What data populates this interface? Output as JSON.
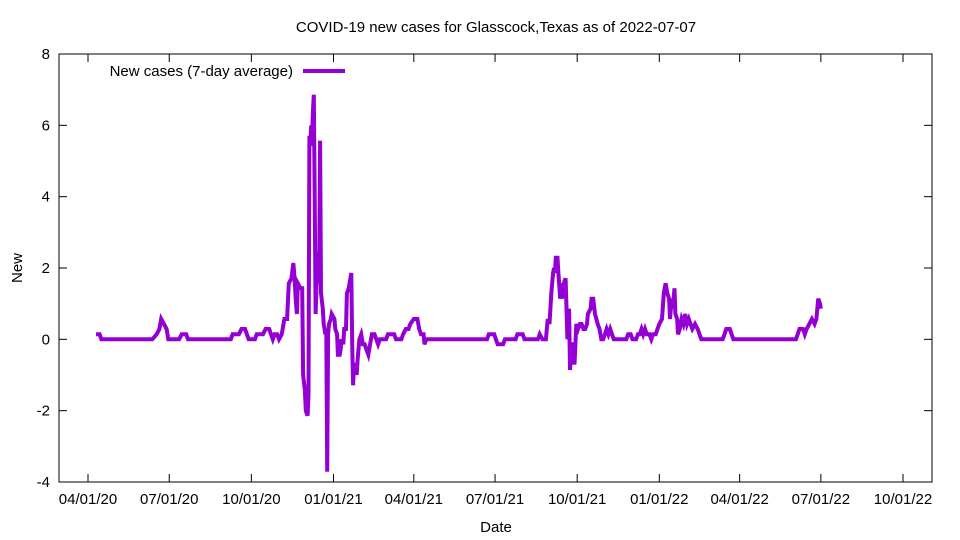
{
  "chart_data": {
    "type": "line",
    "title": "COVID-19 new cases for Glasscock,Texas as of 2022-07-07",
    "xlabel": "Date",
    "ylabel": "New",
    "x_ticks": [
      "04/01/20",
      "07/01/20",
      "10/01/20",
      "01/01/21",
      "04/01/21",
      "07/01/21",
      "10/01/21",
      "01/01/22",
      "04/01/22",
      "07/01/22",
      "10/01/22"
    ],
    "x_range": [
      "2020-04-01",
      "2022-10-01"
    ],
    "y_ticks": [
      -4,
      -2,
      0,
      2,
      4,
      6,
      8
    ],
    "ylim": [
      -4,
      8
    ],
    "grid": false,
    "legend_position": "top-left",
    "series": [
      {
        "name": "New cases (7-day average)",
        "color": "#9400d3",
        "points": [
          [
            "2020-04-10",
            0.14
          ],
          [
            "2020-04-14",
            0.14
          ],
          [
            "2020-04-16",
            0.0
          ],
          [
            "2020-06-12",
            0.0
          ],
          [
            "2020-06-17",
            0.14
          ],
          [
            "2020-06-20",
            0.29
          ],
          [
            "2020-06-22",
            0.57
          ],
          [
            "2020-06-25",
            0.43
          ],
          [
            "2020-06-28",
            0.29
          ],
          [
            "2020-06-30",
            0.0
          ],
          [
            "2020-07-12",
            0.0
          ],
          [
            "2020-07-15",
            0.14
          ],
          [
            "2020-07-20",
            0.14
          ],
          [
            "2020-07-22",
            0.0
          ],
          [
            "2020-09-08",
            0.0
          ],
          [
            "2020-09-10",
            0.14
          ],
          [
            "2020-09-17",
            0.14
          ],
          [
            "2020-09-20",
            0.29
          ],
          [
            "2020-09-24",
            0.29
          ],
          [
            "2020-09-26",
            0.14
          ],
          [
            "2020-09-28",
            0.0
          ],
          [
            "2020-10-05",
            0.0
          ],
          [
            "2020-10-07",
            0.14
          ],
          [
            "2020-10-14",
            0.14
          ],
          [
            "2020-10-17",
            0.29
          ],
          [
            "2020-10-21",
            0.29
          ],
          [
            "2020-10-23",
            0.14
          ],
          [
            "2020-10-25",
            0.0
          ],
          [
            "2020-10-27",
            0.14
          ],
          [
            "2020-10-30",
            0.14
          ],
          [
            "2020-11-01",
            0.0
          ],
          [
            "2020-11-04",
            0.14
          ],
          [
            "2020-11-07",
            0.57
          ],
          [
            "2020-11-10",
            0.57
          ],
          [
            "2020-11-12",
            1.57
          ],
          [
            "2020-11-15",
            1.71
          ],
          [
            "2020-11-17",
            2.14
          ],
          [
            "2020-11-18",
            1.86
          ],
          [
            "2020-11-20",
            1.0
          ],
          [
            "2020-11-21",
            0.71
          ],
          [
            "2020-11-22",
            1.57
          ],
          [
            "2020-11-25",
            1.43
          ],
          [
            "2020-11-27",
            1.43
          ],
          [
            "2020-11-28",
            -1.0
          ],
          [
            "2020-11-30",
            -1.43
          ],
          [
            "2020-12-01",
            -2.0
          ],
          [
            "2020-12-03",
            -2.14
          ],
          [
            "2020-12-04",
            -1.57
          ],
          [
            "2020-12-05",
            5.71
          ],
          [
            "2020-12-06",
            5.43
          ],
          [
            "2020-12-07",
            6.0
          ],
          [
            "2020-12-08",
            5.71
          ],
          [
            "2020-12-09",
            6.43
          ],
          [
            "2020-12-10",
            6.86
          ],
          [
            "2020-12-11",
            4.0
          ],
          [
            "2020-12-12",
            0.71
          ],
          [
            "2020-12-13",
            1.43
          ],
          [
            "2020-12-14",
            2.43
          ],
          [
            "2020-12-15",
            1.57
          ],
          [
            "2020-12-16",
            2.0
          ],
          [
            "2020-12-17",
            5.57
          ],
          [
            "2020-12-18",
            1.29
          ],
          [
            "2020-12-20",
            0.86
          ],
          [
            "2020-12-21",
            0.43
          ],
          [
            "2020-12-23",
            0.14
          ],
          [
            "2020-12-24",
            0.29
          ],
          [
            "2020-12-25",
            -3.71
          ],
          [
            "2020-12-26",
            0.14
          ],
          [
            "2020-12-27",
            0.43
          ],
          [
            "2020-12-29",
            0.57
          ],
          [
            "2020-12-30",
            0.71
          ],
          [
            "2021-01-02",
            0.57
          ],
          [
            "2021-01-03",
            0.29
          ],
          [
            "2021-01-05",
            0.14
          ],
          [
            "2021-01-06",
            -0.43
          ],
          [
            "2021-01-08",
            -0.43
          ],
          [
            "2021-01-09",
            -0.29
          ],
          [
            "2021-01-10",
            0.0
          ],
          [
            "2021-01-12",
            -0.14
          ],
          [
            "2021-01-13",
            0.29
          ],
          [
            "2021-01-15",
            0.29
          ],
          [
            "2021-01-16",
            1.29
          ],
          [
            "2021-01-18",
            1.43
          ],
          [
            "2021-01-20",
            1.71
          ],
          [
            "2021-01-21",
            1.86
          ],
          [
            "2021-01-22",
            -0.14
          ],
          [
            "2021-01-23",
            -1.29
          ],
          [
            "2021-01-24",
            -0.71
          ],
          [
            "2021-01-26",
            -0.71
          ],
          [
            "2021-01-27",
            -1.0
          ],
          [
            "2021-01-28",
            -0.57
          ],
          [
            "2021-01-30",
            0.0
          ],
          [
            "2021-02-01",
            0.14
          ],
          [
            "2021-02-03",
            -0.14
          ],
          [
            "2021-02-05",
            -0.14
          ],
          [
            "2021-02-07",
            -0.29
          ],
          [
            "2021-02-09",
            -0.43
          ],
          [
            "2021-02-11",
            -0.14
          ],
          [
            "2021-02-13",
            0.14
          ],
          [
            "2021-02-16",
            0.14
          ],
          [
            "2021-02-18",
            0.0
          ],
          [
            "2021-02-20",
            -0.14
          ],
          [
            "2021-02-22",
            0.0
          ],
          [
            "2021-03-01",
            0.0
          ],
          [
            "2021-03-03",
            0.14
          ],
          [
            "2021-03-10",
            0.14
          ],
          [
            "2021-03-12",
            0.0
          ],
          [
            "2021-03-18",
            0.0
          ],
          [
            "2021-03-20",
            0.14
          ],
          [
            "2021-03-23",
            0.29
          ],
          [
            "2021-03-26",
            0.29
          ],
          [
            "2021-03-28",
            0.43
          ],
          [
            "2021-04-01",
            0.57
          ],
          [
            "2021-04-05",
            0.57
          ],
          [
            "2021-04-07",
            0.29
          ],
          [
            "2021-04-09",
            0.14
          ],
          [
            "2021-04-12",
            0.14
          ],
          [
            "2021-04-13",
            -0.14
          ],
          [
            "2021-04-15",
            0.0
          ],
          [
            "2021-06-22",
            0.0
          ],
          [
            "2021-06-24",
            0.14
          ],
          [
            "2021-06-30",
            0.14
          ],
          [
            "2021-07-02",
            0.0
          ],
          [
            "2021-07-04",
            -0.14
          ],
          [
            "2021-07-10",
            -0.14
          ],
          [
            "2021-07-12",
            0.0
          ],
          [
            "2021-07-24",
            0.0
          ],
          [
            "2021-07-26",
            0.14
          ],
          [
            "2021-08-01",
            0.14
          ],
          [
            "2021-08-03",
            0.0
          ],
          [
            "2021-08-18",
            0.0
          ],
          [
            "2021-08-20",
            0.14
          ],
          [
            "2021-08-23",
            0.0
          ],
          [
            "2021-08-27",
            0.0
          ],
          [
            "2021-08-29",
            0.57
          ],
          [
            "2021-08-31",
            0.43
          ],
          [
            "2021-09-02",
            1.29
          ],
          [
            "2021-09-04",
            1.86
          ],
          [
            "2021-09-05",
            2.0
          ],
          [
            "2021-09-06",
            1.86
          ],
          [
            "2021-09-07",
            2.29
          ],
          [
            "2021-09-09",
            2.29
          ],
          [
            "2021-09-10",
            1.86
          ],
          [
            "2021-09-12",
            1.14
          ],
          [
            "2021-09-13",
            1.57
          ],
          [
            "2021-09-14",
            1.14
          ],
          [
            "2021-09-16",
            1.57
          ],
          [
            "2021-09-18",
            1.71
          ],
          [
            "2021-09-19",
            0.86
          ],
          [
            "2021-09-20",
            0.0
          ],
          [
            "2021-09-22",
            0.86
          ],
          [
            "2021-09-23",
            -0.86
          ],
          [
            "2021-09-25",
            -0.14
          ],
          [
            "2021-09-27",
            -0.14
          ],
          [
            "2021-09-28",
            -0.71
          ],
          [
            "2021-09-30",
            0.43
          ],
          [
            "2021-10-02",
            0.29
          ],
          [
            "2021-10-04",
            0.43
          ],
          [
            "2021-10-06",
            0.43
          ],
          [
            "2021-10-08",
            0.29
          ],
          [
            "2021-10-10",
            0.29
          ],
          [
            "2021-10-12",
            0.43
          ],
          [
            "2021-10-13",
            0.71
          ],
          [
            "2021-10-16",
            0.86
          ],
          [
            "2021-10-17",
            1.14
          ],
          [
            "2021-10-19",
            1.14
          ],
          [
            "2021-10-21",
            0.71
          ],
          [
            "2021-10-24",
            0.43
          ],
          [
            "2021-10-26",
            0.29
          ],
          [
            "2021-10-28",
            0.0
          ],
          [
            "2021-10-30",
            0.0
          ],
          [
            "2021-11-01",
            0.14
          ],
          [
            "2021-11-03",
            0.29
          ],
          [
            "2021-11-05",
            0.14
          ],
          [
            "2021-11-07",
            0.29
          ],
          [
            "2021-11-09",
            0.14
          ],
          [
            "2021-11-11",
            0.0
          ],
          [
            "2021-11-25",
            0.0
          ],
          [
            "2021-11-27",
            0.14
          ],
          [
            "2021-11-30",
            0.14
          ],
          [
            "2021-12-02",
            0.0
          ],
          [
            "2021-12-06",
            0.0
          ],
          [
            "2021-12-08",
            0.14
          ],
          [
            "2021-12-10",
            0.14
          ],
          [
            "2021-12-12",
            0.29
          ],
          [
            "2021-12-14",
            0.14
          ],
          [
            "2021-12-16",
            0.29
          ],
          [
            "2021-12-18",
            0.14
          ],
          [
            "2021-12-21",
            0.14
          ],
          [
            "2021-12-23",
            0.0
          ],
          [
            "2021-12-25",
            0.14
          ],
          [
            "2021-12-28",
            0.14
          ],
          [
            "2021-12-30",
            0.29
          ],
          [
            "2022-01-01",
            0.43
          ],
          [
            "2022-01-04",
            0.57
          ],
          [
            "2022-01-06",
            1.29
          ],
          [
            "2022-01-08",
            1.57
          ],
          [
            "2022-01-10",
            1.29
          ],
          [
            "2022-01-12",
            1.14
          ],
          [
            "2022-01-13",
            0.57
          ],
          [
            "2022-01-15",
            1.14
          ],
          [
            "2022-01-16",
            0.86
          ],
          [
            "2022-01-18",
            1.43
          ],
          [
            "2022-01-19",
            0.71
          ],
          [
            "2022-01-21",
            0.57
          ],
          [
            "2022-01-22",
            0.14
          ],
          [
            "2022-01-24",
            0.29
          ],
          [
            "2022-01-26",
            0.57
          ],
          [
            "2022-01-28",
            0.43
          ],
          [
            "2022-01-30",
            0.71
          ],
          [
            "2022-02-01",
            0.43
          ],
          [
            "2022-02-03",
            0.57
          ],
          [
            "2022-02-05",
            0.43
          ],
          [
            "2022-02-07",
            0.29
          ],
          [
            "2022-02-10",
            0.43
          ],
          [
            "2022-02-13",
            0.29
          ],
          [
            "2022-02-15",
            0.14
          ],
          [
            "2022-02-17",
            0.0
          ],
          [
            "2022-03-13",
            0.0
          ],
          [
            "2022-03-15",
            0.14
          ],
          [
            "2022-03-17",
            0.29
          ],
          [
            "2022-03-21",
            0.29
          ],
          [
            "2022-03-23",
            0.14
          ],
          [
            "2022-03-25",
            0.0
          ],
          [
            "2022-06-03",
            0.0
          ],
          [
            "2022-06-05",
            0.14
          ],
          [
            "2022-06-07",
            0.29
          ],
          [
            "2022-06-11",
            0.29
          ],
          [
            "2022-06-13",
            0.14
          ],
          [
            "2022-06-15",
            0.29
          ],
          [
            "2022-06-18",
            0.43
          ],
          [
            "2022-06-21",
            0.57
          ],
          [
            "2022-06-24",
            0.43
          ],
          [
            "2022-06-26",
            0.57
          ],
          [
            "2022-06-28",
            1.14
          ],
          [
            "2022-06-30",
            1.0
          ],
          [
            "2022-07-01",
            0.86
          ]
        ]
      }
    ]
  }
}
